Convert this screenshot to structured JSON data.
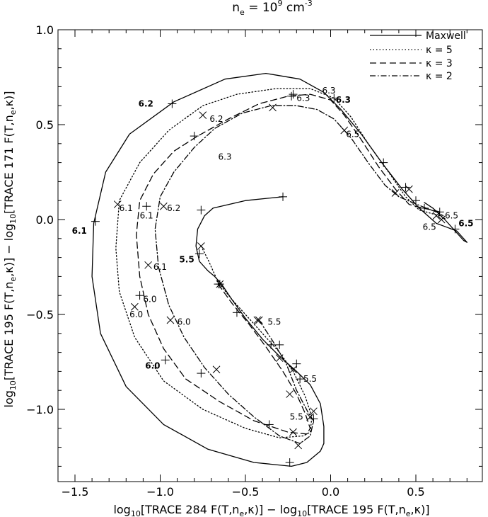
{
  "chart_data": {
    "type": "line",
    "title": {
      "ne": "n",
      "sub": "e",
      "eq": " = 10",
      "exp": "9",
      "unit": " cm",
      "unitexp": "-3"
    },
    "xlabel": {
      "a": "log",
      "a_sub": "10",
      "b": "[TRACE 284 F(T,n",
      "b_sub": "e",
      "c": ",κ)] − log",
      "c_sub": "10",
      "d": "[TRACE 195 F(T,n",
      "d_sub": "e",
      "e": ",κ)]"
    },
    "ylabel": {
      "a": "log",
      "a_sub": "10",
      "b": "[TRACE 195 F(T,n",
      "b_sub": "e",
      "c": ",κ)] − log",
      "c_sub": "10",
      "d": "[TRACE 171 F(T,n",
      "d_sub": "e",
      "e": ",κ)]"
    },
    "xlim": [
      -1.5,
      0.85
    ],
    "ylim": [
      -1.3,
      1.0
    ],
    "xticks": [
      -1.5,
      -1.0,
      -0.5,
      0.0,
      0.5
    ],
    "xtick_labels": [
      "−1.5",
      "−1.0",
      "−0.5",
      "0.0",
      "0.5"
    ],
    "yticks": [
      -1.0,
      -0.5,
      0.0,
      0.5,
      1.0
    ],
    "ytick_labels": [
      "−1.0",
      "−0.5",
      "0.0",
      "0.5",
      "1.0"
    ],
    "grid": false,
    "legend_position": "top-right",
    "series": [
      {
        "name": "Maxwell",
        "dash": "solid",
        "marker": "plus",
        "points": [
          [
            -0.28,
            0.12
          ],
          [
            -0.5,
            0.1
          ],
          [
            -0.69,
            0.06
          ],
          [
            -0.74,
            0.02
          ],
          [
            -0.78,
            -0.05
          ],
          [
            -0.79,
            -0.14
          ],
          [
            -0.77,
            -0.22
          ],
          [
            -0.72,
            -0.27
          ],
          [
            -0.68,
            -0.3
          ],
          [
            -0.64,
            -0.34
          ],
          [
            -0.58,
            -0.42
          ],
          [
            -0.5,
            -0.52
          ],
          [
            -0.4,
            -0.63
          ],
          [
            -0.3,
            -0.72
          ],
          [
            -0.2,
            -0.8
          ],
          [
            -0.12,
            -0.87
          ],
          [
            -0.06,
            -0.97
          ],
          [
            -0.04,
            -1.09
          ],
          [
            -0.04,
            -1.18
          ],
          [
            -0.06,
            -1.22
          ],
          [
            -0.14,
            -1.28
          ],
          [
            -0.23,
            -1.3
          ],
          [
            -0.45,
            -1.28
          ],
          [
            -0.72,
            -1.21
          ],
          [
            -0.98,
            -1.08
          ],
          [
            -1.2,
            -0.88
          ],
          [
            -1.35,
            -0.6
          ],
          [
            -1.4,
            -0.3
          ],
          [
            -1.39,
            -0.02
          ],
          [
            -1.32,
            0.25
          ],
          [
            -1.18,
            0.45
          ],
          [
            -0.92,
            0.62
          ],
          [
            -0.62,
            0.74
          ],
          [
            -0.38,
            0.77
          ],
          [
            -0.18,
            0.74
          ],
          [
            -0.04,
            0.67
          ],
          [
            0.06,
            0.58
          ],
          [
            0.18,
            0.45
          ],
          [
            0.3,
            0.3
          ],
          [
            0.42,
            0.16
          ],
          [
            0.52,
            0.06
          ],
          [
            0.62,
            -0.02
          ],
          [
            0.68,
            -0.04
          ],
          [
            0.74,
            -0.06
          ],
          [
            0.78,
            -0.1
          ],
          [
            0.8,
            -0.12
          ],
          [
            0.78,
            -0.11
          ],
          [
            0.73,
            -0.06
          ],
          [
            0.67,
            0.0
          ],
          [
            0.6,
            0.06
          ],
          [
            0.55,
            0.09
          ]
        ],
        "markers": [
          [
            -0.28,
            0.12
          ],
          [
            -0.76,
            0.05
          ],
          [
            -0.77,
            -0.18
          ],
          [
            -0.65,
            -0.34
          ],
          [
            -0.55,
            -0.49
          ],
          [
            -0.3,
            -0.66
          ],
          [
            -0.2,
            -0.76
          ],
          [
            -0.1,
            -1.05
          ],
          [
            -0.24,
            -1.28
          ],
          [
            -0.97,
            -0.74
          ],
          [
            -1.38,
            -0.01
          ],
          [
            -0.93,
            0.61
          ],
          [
            -0.22,
            0.66
          ],
          [
            0.02,
            0.64
          ],
          [
            0.31,
            0.3
          ],
          [
            0.44,
            0.17
          ],
          [
            0.55,
            0.06
          ],
          [
            0.73,
            -0.05
          ]
        ]
      },
      {
        "name": "κ = 5",
        "dash": "dotted",
        "marker": "x",
        "points": [
          [
            -0.76,
            -0.14
          ],
          [
            -0.72,
            -0.21
          ],
          [
            -0.66,
            -0.33
          ],
          [
            -0.58,
            -0.42
          ],
          [
            -0.5,
            -0.5
          ],
          [
            -0.4,
            -0.6
          ],
          [
            -0.3,
            -0.7
          ],
          [
            -0.22,
            -0.8
          ],
          [
            -0.15,
            -0.93
          ],
          [
            -0.11,
            -1.04
          ],
          [
            -0.12,
            -1.12
          ],
          [
            -0.16,
            -1.14
          ],
          [
            -0.3,
            -1.15
          ],
          [
            -0.5,
            -1.1
          ],
          [
            -0.75,
            -1.0
          ],
          [
            -0.98,
            -0.85
          ],
          [
            -1.15,
            -0.62
          ],
          [
            -1.24,
            -0.38
          ],
          [
            -1.26,
            -0.15
          ],
          [
            -1.24,
            0.1
          ],
          [
            -1.12,
            0.3
          ],
          [
            -0.95,
            0.47
          ],
          [
            -0.75,
            0.6
          ],
          [
            -0.55,
            0.66
          ],
          [
            -0.32,
            0.69
          ],
          [
            -0.12,
            0.69
          ],
          [
            0.02,
            0.64
          ],
          [
            0.12,
            0.54
          ],
          [
            0.22,
            0.4
          ],
          [
            0.34,
            0.25
          ],
          [
            0.44,
            0.12
          ],
          [
            0.52,
            0.05
          ],
          [
            0.6,
            0.03
          ],
          [
            0.64,
            0.02
          ],
          [
            0.68,
            0.0
          ]
        ],
        "markers": [
          [
            -0.76,
            -0.14
          ],
          [
            -0.65,
            -0.34
          ],
          [
            -0.43,
            -0.53
          ],
          [
            -0.22,
            -0.79
          ],
          [
            -0.12,
            -1.04
          ],
          [
            -0.22,
            -1.12
          ],
          [
            -1.15,
            -0.46
          ],
          [
            -1.25,
            0.08
          ],
          [
            -0.75,
            0.55
          ],
          [
            0.46,
            0.16
          ],
          [
            0.65,
            0.0
          ]
        ]
      },
      {
        "name": "κ = 3",
        "dash": "dashed",
        "marker": "plus",
        "points": [
          [
            -0.66,
            -0.34
          ],
          [
            -0.58,
            -0.44
          ],
          [
            -0.48,
            -0.55
          ],
          [
            -0.38,
            -0.67
          ],
          [
            -0.28,
            -0.8
          ],
          [
            -0.2,
            -0.92
          ],
          [
            -0.15,
            -1.02
          ],
          [
            -0.12,
            -1.1
          ],
          [
            -0.14,
            -1.13
          ],
          [
            -0.25,
            -1.12
          ],
          [
            -0.45,
            -1.06
          ],
          [
            -0.65,
            -0.96
          ],
          [
            -0.85,
            -0.84
          ],
          [
            -0.98,
            -0.68
          ],
          [
            -1.07,
            -0.5
          ],
          [
            -1.12,
            -0.3
          ],
          [
            -1.14,
            -0.08
          ],
          [
            -1.12,
            0.1
          ],
          [
            -1.04,
            0.24
          ],
          [
            -0.92,
            0.36
          ],
          [
            -0.78,
            0.44
          ],
          [
            -0.6,
            0.53
          ],
          [
            -0.42,
            0.61
          ],
          [
            -0.25,
            0.65
          ],
          [
            -0.12,
            0.66
          ],
          [
            0.0,
            0.63
          ],
          [
            0.08,
            0.55
          ],
          [
            0.18,
            0.42
          ],
          [
            0.28,
            0.28
          ],
          [
            0.38,
            0.16
          ],
          [
            0.46,
            0.08
          ],
          [
            0.54,
            0.06
          ],
          [
            0.6,
            0.05
          ],
          [
            0.64,
            0.04
          ]
        ],
        "markers": [
          [
            -0.66,
            -0.34
          ],
          [
            -0.35,
            -0.66
          ],
          [
            -0.18,
            -0.84
          ],
          [
            -0.36,
            -1.08
          ],
          [
            -0.76,
            -0.81
          ],
          [
            -1.12,
            -0.4
          ],
          [
            -1.08,
            0.07
          ],
          [
            -0.8,
            0.44
          ],
          [
            -0.23,
            0.65
          ],
          [
            0.5,
            0.1
          ],
          [
            0.64,
            0.04
          ]
        ]
      },
      {
        "name": "κ = 2",
        "dash": "dashdot",
        "marker": "x",
        "points": [
          [
            -0.42,
            -0.53
          ],
          [
            -0.34,
            -0.64
          ],
          [
            -0.26,
            -0.76
          ],
          [
            -0.2,
            -0.9
          ],
          [
            -0.13,
            -1.02
          ],
          [
            -0.1,
            -1.06
          ],
          [
            -0.12,
            -1.14
          ],
          [
            -0.18,
            -1.18
          ],
          [
            -0.3,
            -1.14
          ],
          [
            -0.45,
            -1.04
          ],
          [
            -0.6,
            -0.92
          ],
          [
            -0.74,
            -0.78
          ],
          [
            -0.86,
            -0.62
          ],
          [
            -0.95,
            -0.45
          ],
          [
            -1.01,
            -0.25
          ],
          [
            -1.03,
            -0.05
          ],
          [
            -1.0,
            0.12
          ],
          [
            -0.92,
            0.25
          ],
          [
            -0.8,
            0.38
          ],
          [
            -0.68,
            0.48
          ],
          [
            -0.52,
            0.56
          ],
          [
            -0.35,
            0.6
          ],
          [
            -0.2,
            0.6
          ],
          [
            -0.08,
            0.58
          ],
          [
            0.02,
            0.53
          ],
          [
            0.12,
            0.43
          ],
          [
            0.22,
            0.3
          ],
          [
            0.32,
            0.18
          ],
          [
            0.4,
            0.12
          ],
          [
            0.48,
            0.09
          ],
          [
            0.56,
            0.06
          ],
          [
            0.62,
            0.04
          ],
          [
            0.66,
            0.02
          ]
        ],
        "markers": [
          [
            -0.42,
            -0.53
          ],
          [
            -0.3,
            -0.73
          ],
          [
            -0.24,
            -0.92
          ],
          [
            -0.1,
            -1.01
          ],
          [
            -0.19,
            -1.19
          ],
          [
            -0.67,
            -0.79
          ],
          [
            -0.94,
            -0.53
          ],
          [
            -1.07,
            -0.24
          ],
          [
            -0.98,
            0.07
          ],
          [
            -0.34,
            0.59
          ],
          [
            0.08,
            0.47
          ],
          [
            0.38,
            0.14
          ],
          [
            0.62,
            0.02
          ]
        ]
      }
    ],
    "annotations": [
      {
        "text": "6.2",
        "x": -1.04,
        "y": 0.61,
        "bold": true,
        "anchor": "end"
      },
      {
        "text": "6.2",
        "x": -0.71,
        "y": 0.53,
        "bold": false,
        "anchor": "start"
      },
      {
        "text": "6.3",
        "x": -0.66,
        "y": 0.33,
        "bold": false,
        "anchor": "start"
      },
      {
        "text": "6.3",
        "x": -0.2,
        "y": 0.64,
        "bold": false,
        "anchor": "start"
      },
      {
        "text": "6.3",
        "x": -0.05,
        "y": 0.68,
        "bold": false,
        "anchor": "start"
      },
      {
        "text": "6.3",
        "x": 0.03,
        "y": 0.63,
        "bold": true,
        "anchor": "start"
      },
      {
        "text": "6.5",
        "x": 0.09,
        "y": 0.45,
        "bold": false,
        "anchor": "start"
      },
      {
        "text": "6.5",
        "x": 0.67,
        "y": 0.02,
        "bold": false,
        "anchor": "start"
      },
      {
        "text": "6.5",
        "x": 0.75,
        "y": -0.02,
        "bold": true,
        "anchor": "start"
      },
      {
        "text": "6.5",
        "x": 0.54,
        "y": -0.04,
        "bold": false,
        "anchor": "start"
      },
      {
        "text": "6.1",
        "x": -1.24,
        "y": 0.06,
        "bold": false,
        "anchor": "start"
      },
      {
        "text": "6.1",
        "x": -1.12,
        "y": 0.02,
        "bold": false,
        "anchor": "start"
      },
      {
        "text": "6.2",
        "x": -0.96,
        "y": 0.06,
        "bold": false,
        "anchor": "start"
      },
      {
        "text": "6.1",
        "x": -1.43,
        "y": -0.06,
        "bold": true,
        "anchor": "end"
      },
      {
        "text": "6.1",
        "x": -1.04,
        "y": -0.25,
        "bold": false,
        "anchor": "start"
      },
      {
        "text": "5.5",
        "x": -0.8,
        "y": -0.21,
        "bold": true,
        "anchor": "end"
      },
      {
        "text": "6.0",
        "x": -1.1,
        "y": -0.42,
        "bold": false,
        "anchor": "start"
      },
      {
        "text": "6.0",
        "x": -1.18,
        "y": -0.5,
        "bold": false,
        "anchor": "start"
      },
      {
        "text": "6.0",
        "x": -0.9,
        "y": -0.54,
        "bold": false,
        "anchor": "start"
      },
      {
        "text": "5.5",
        "x": -0.37,
        "y": -0.54,
        "bold": false,
        "anchor": "start"
      },
      {
        "text": "6.0",
        "x": -1.0,
        "y": -0.77,
        "bold": true,
        "anchor": "end"
      },
      {
        "text": "5.5",
        "x": -0.16,
        "y": -0.84,
        "bold": false,
        "anchor": "start"
      },
      {
        "text": "5.5",
        "x": -0.24,
        "y": -1.04,
        "bold": false,
        "anchor": "start"
      }
    ]
  }
}
